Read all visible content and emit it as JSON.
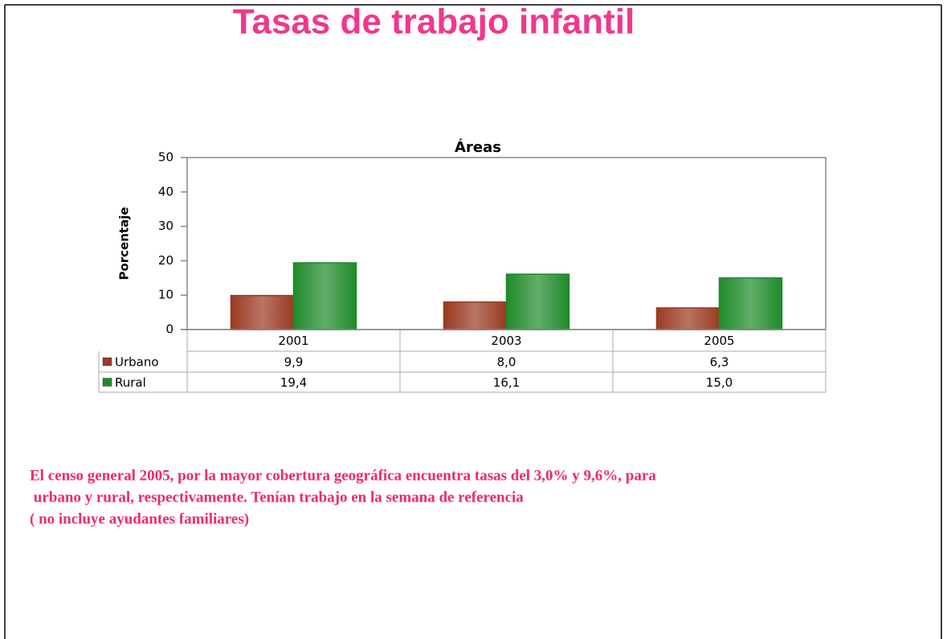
{
  "chart_data": {
    "type": "bar",
    "page_title": "Tasas de trabajo infantil",
    "title": "Áreas",
    "ylabel": "Porcentaje",
    "categories": [
      "2001",
      "2003",
      "2005"
    ],
    "series": [
      {
        "name": "Urbano",
        "color": "#9a3a22",
        "values": [
          9.9,
          8.0,
          6.3
        ],
        "value_labels": [
          "9,9",
          "8,0",
          "6,3"
        ]
      },
      {
        "name": "Rural",
        "color": "#1f8a2a",
        "values": [
          19.4,
          16.1,
          15.0
        ],
        "value_labels": [
          "19,4",
          "16,1",
          "15,0"
        ]
      }
    ],
    "ylim": [
      0,
      50
    ],
    "yticks": [
      0,
      10,
      20,
      30,
      40,
      50
    ],
    "grid": false,
    "annotations": [
      "El censo general 2005, por la mayor cobertura geográfica encuentra tasas del 3,0% y 9,6%, para",
      " urbano y rural, respectivamente. Tenían trabajo en la semana de referencia",
      "( no incluye ayudantes familiares)"
    ]
  }
}
